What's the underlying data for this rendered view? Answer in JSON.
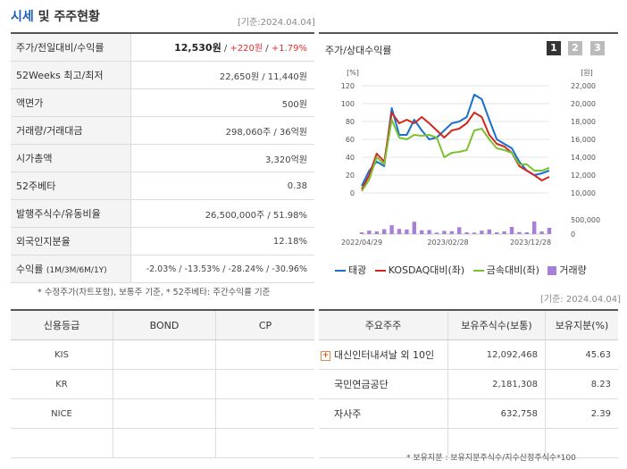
{
  "header": {
    "title_main": "시세",
    "title_rest": " 및 주주현황",
    "basis_date": "[기준:2024.04.04]"
  },
  "info_rows": [
    {
      "label": "주가/전일대비/수익률",
      "price": "12,530원",
      "sep1": " / ",
      "change": "+220원",
      "sep2": " / ",
      "rate": "+1.79%"
    },
    {
      "label": "52Weeks 최고/최저",
      "value": "22,650원 / 11,440원"
    },
    {
      "label": "액면가",
      "value": "500원"
    },
    {
      "label": "거래량/거래대금",
      "value": "298,060주 / 36억원"
    },
    {
      "label": "시가총액",
      "value": "3,320억원"
    },
    {
      "label": "52주베타",
      "value": "0.38"
    },
    {
      "label": "발행주식수/유동비율",
      "value": "26,500,000주 / 51.98%"
    },
    {
      "label": "외국인지분율",
      "value": "12.18%"
    },
    {
      "label": "수익률",
      "label_sub": "(1M/3M/6M/1Y)",
      "returns": [
        "-2.03%",
        "-13.53%",
        "-28.24%",
        "-30.96%"
      ],
      "sep": " / "
    }
  ],
  "info_note": "* 수정주가(차트포함), 보통주 기준, * 52주베타: 주간수익률 기준",
  "chart_panel": {
    "title": "주가/상대수익률",
    "page_buttons": [
      "1",
      "2",
      "3"
    ],
    "left_unit": "[%]",
    "right_unit": "[원]",
    "legend": [
      {
        "label": "태광",
        "color": "#1a6fd0"
      },
      {
        "label": "KOSDAQ대비(좌)",
        "color": "#d0281e"
      },
      {
        "label": "금속대비(좌)",
        "color": "#7ac231"
      },
      {
        "label": "거래량",
        "color": "#a77fd6"
      }
    ]
  },
  "chart_data": {
    "type": "line",
    "x_ticks": [
      "2022/04/29",
      "2023/02/28",
      "2023/12/28"
    ],
    "y_left": {
      "range": [
        0,
        120
      ],
      "ticks": [
        0,
        20,
        40,
        60,
        80,
        100,
        120
      ]
    },
    "y_right": {
      "range": [
        10000,
        22000
      ],
      "ticks": [
        "10,000",
        "12,000",
        "14,000",
        "16,000",
        "18,000",
        "20,000",
        "22,000"
      ]
    },
    "y_volume": {
      "range": [
        0,
        500000
      ],
      "ticks": [
        "0",
        "500,000"
      ]
    },
    "series": [
      {
        "name": "태광",
        "axis": "left",
        "color": "#1a6fd0",
        "values": [
          8,
          25,
          35,
          30,
          95,
          65,
          65,
          82,
          70,
          60,
          62,
          70,
          78,
          80,
          85,
          110,
          105,
          82,
          60,
          55,
          50,
          35,
          25,
          20,
          22,
          25
        ]
      },
      {
        "name": "KOSDAQ대비(좌)",
        "axis": "left",
        "color": "#d0281e",
        "values": [
          4,
          20,
          44,
          35,
          90,
          78,
          82,
          78,
          85,
          78,
          70,
          62,
          70,
          72,
          78,
          90,
          85,
          65,
          55,
          52,
          45,
          30,
          25,
          20,
          14,
          18
        ]
      },
      {
        "name": "금속대비(좌)",
        "axis": "left",
        "color": "#7ac231",
        "values": [
          2,
          15,
          40,
          32,
          82,
          62,
          60,
          65,
          64,
          65,
          62,
          40,
          45,
          46,
          48,
          70,
          72,
          60,
          50,
          48,
          45,
          32,
          32,
          25,
          25,
          28
        ]
      },
      {
        "name": "거래량",
        "axis": "volume",
        "color": "#a77fd6",
        "values": [
          60000,
          120000,
          90000,
          170000,
          310000,
          180000,
          160000,
          430000,
          130000,
          140000,
          50000,
          110000,
          100000,
          240000,
          60000,
          50000,
          120000,
          160000,
          60000,
          90000,
          250000,
          70000,
          60000,
          440000,
          90000,
          220000
        ]
      }
    ]
  },
  "credit_table": {
    "headers": [
      "신용등급",
      "BOND",
      "CP"
    ],
    "rows": [
      [
        "KIS",
        "",
        ""
      ],
      [
        "KR",
        "",
        ""
      ],
      [
        "NICE",
        "",
        ""
      ],
      [
        "",
        "",
        ""
      ]
    ]
  },
  "holder_basis": "[기준: 2024.04.04]",
  "holders_table": {
    "headers": [
      "주요주주",
      "보유주식수(보통)",
      "보유지분(%)"
    ],
    "rows": [
      {
        "name": "대신인터내셔날 외 10인",
        "expandable": true,
        "shares": "12,092,468",
        "pct": "45.63"
      },
      {
        "name": "국민연금공단",
        "expandable": false,
        "shares": "2,181,308",
        "pct": "8.23"
      },
      {
        "name": "자사주",
        "expandable": false,
        "shares": "632,758",
        "pct": "2.39"
      },
      {
        "name": "",
        "expandable": false,
        "shares": "",
        "pct": ""
      }
    ]
  },
  "holders_note": "* 보유지분 : 보유지분주식수/지수산정주식수*100"
}
